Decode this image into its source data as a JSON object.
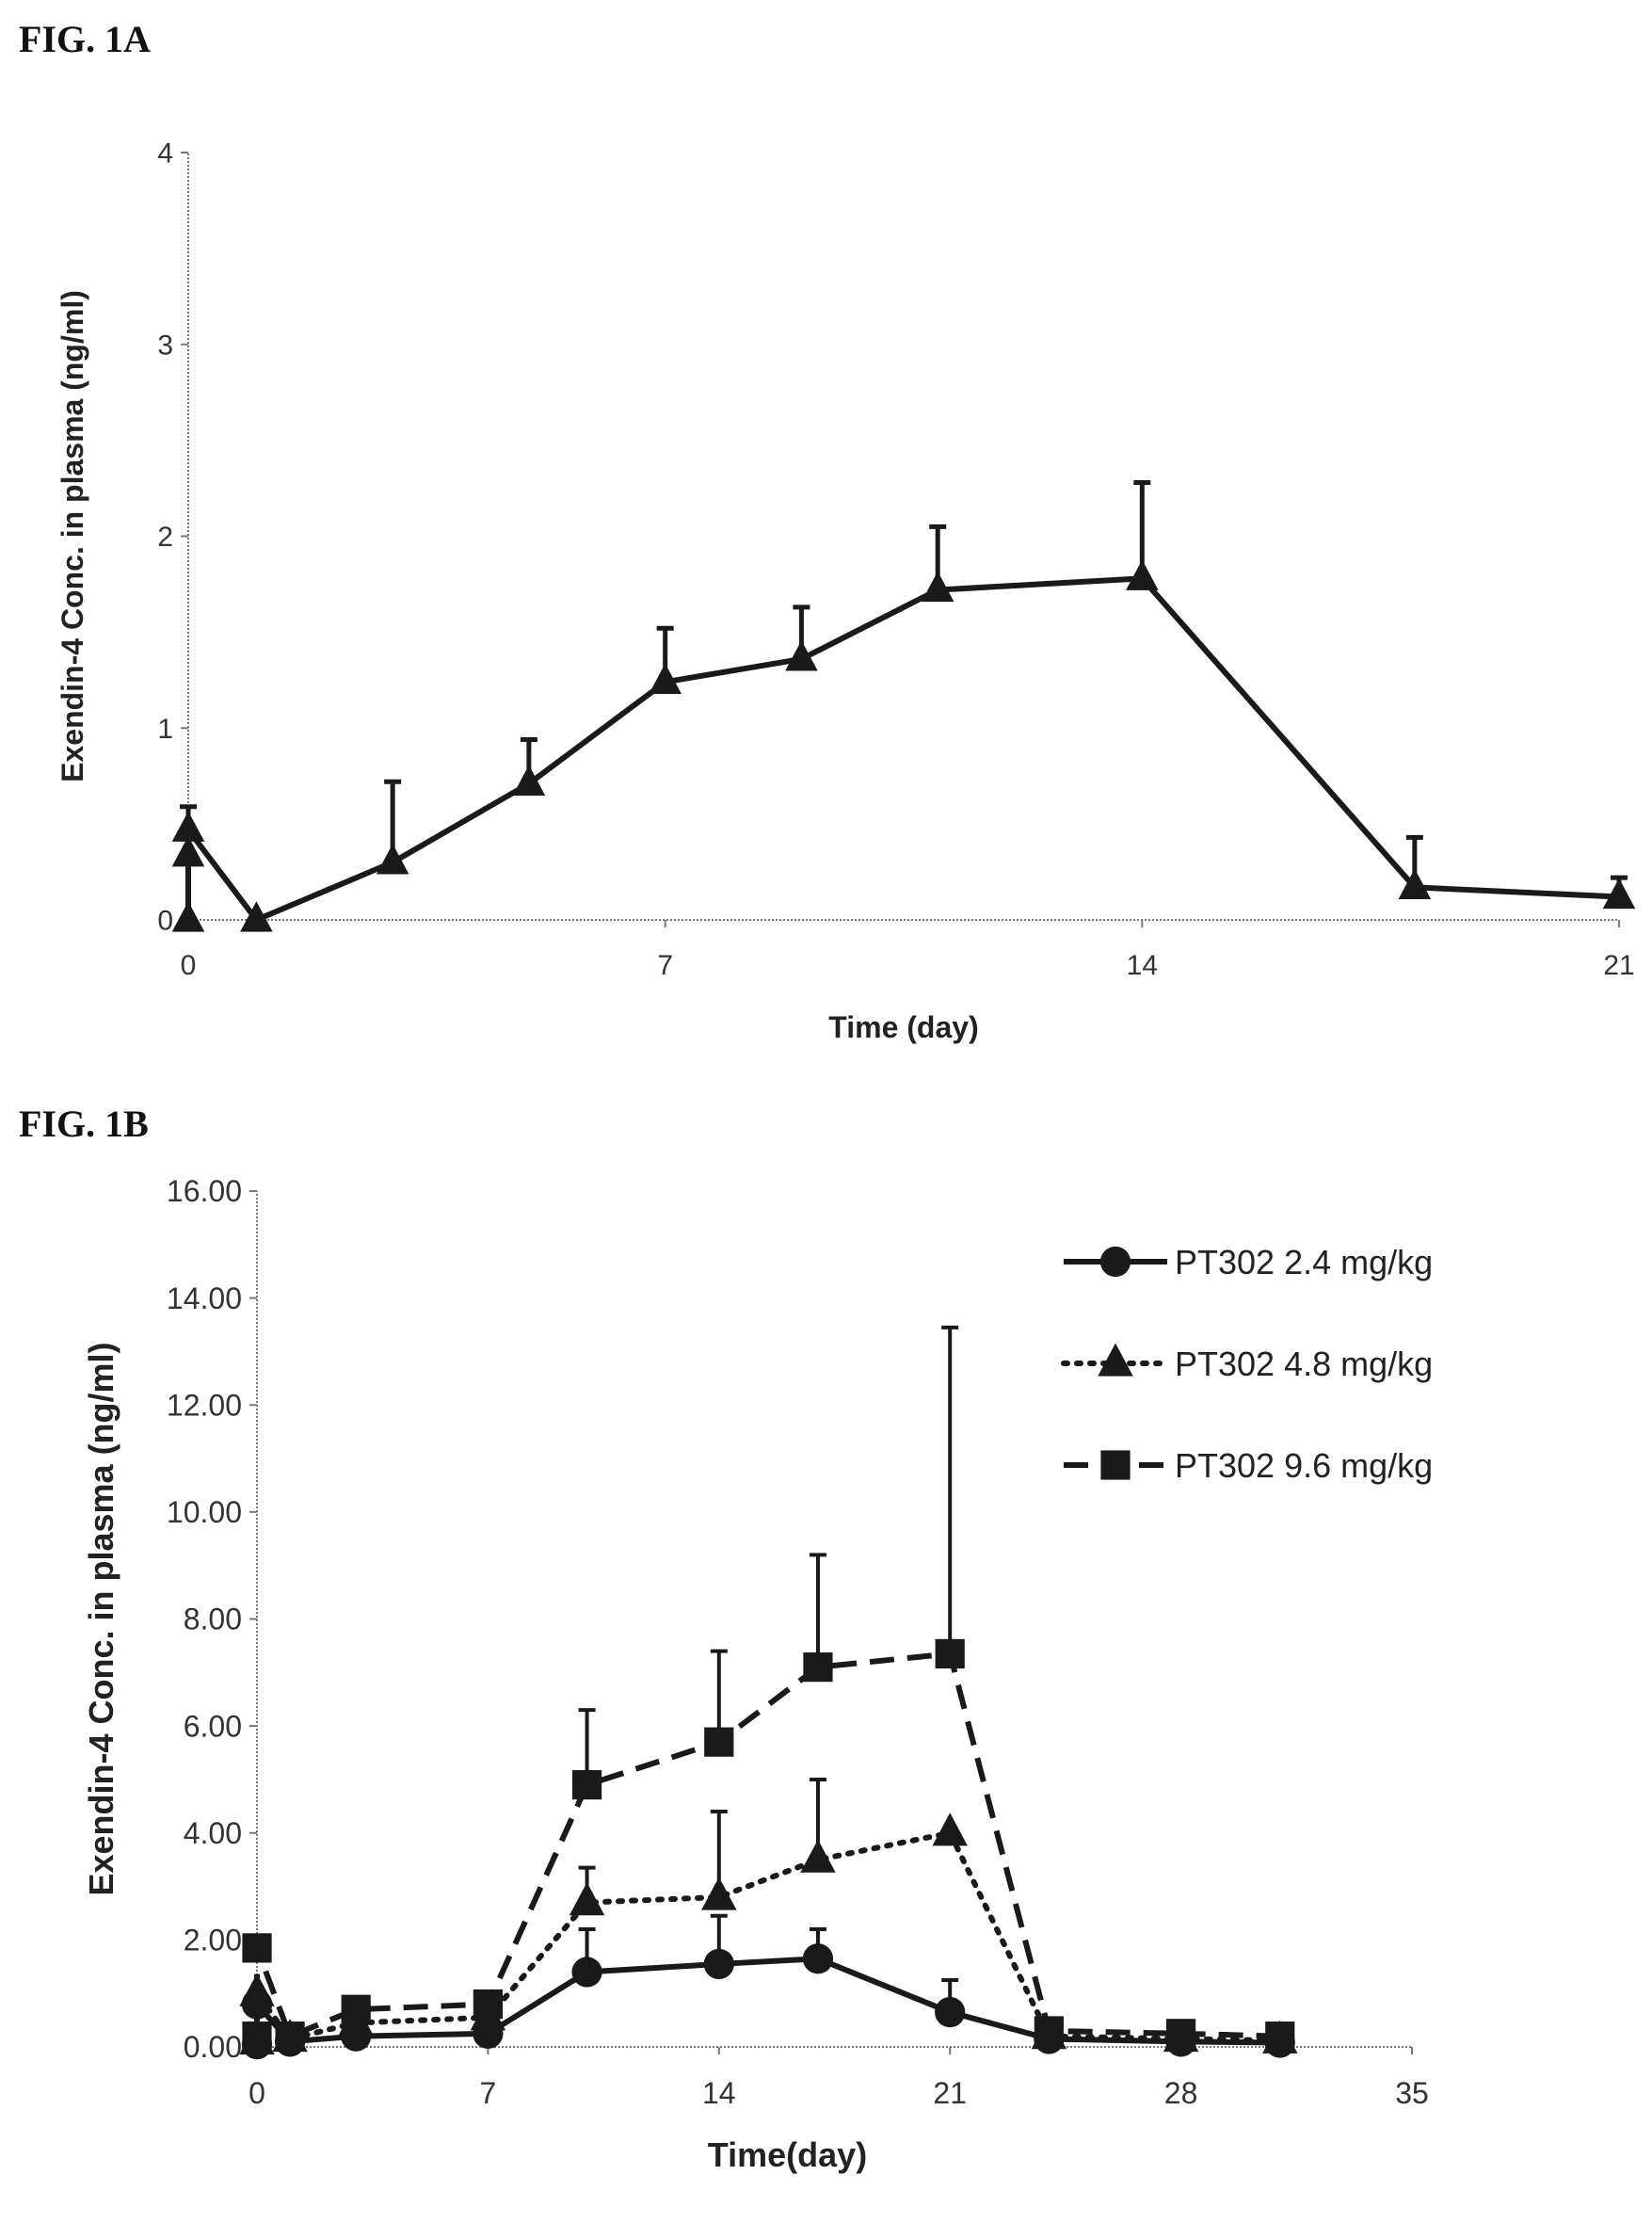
{
  "figures": {
    "a_label": "FIG. 1A",
    "b_label": "FIG. 1B"
  },
  "chart_data": [
    {
      "type": "line",
      "title": "",
      "xlabel": "Time (day)",
      "ylabel": "Exendin-4 Conc. in plasma (ng/ml)",
      "xlim": [
        0,
        21
      ],
      "ylim": [
        0,
        4
      ],
      "xticks": [
        0,
        7,
        14,
        21
      ],
      "yticks": [
        0,
        1,
        2,
        3,
        4
      ],
      "xtick_labels": [
        "0",
        "7",
        "14",
        "21"
      ],
      "ytick_labels": [
        "0",
        "1",
        "2",
        "3",
        "4"
      ],
      "grid": false,
      "series": [
        {
          "marker": "triangle",
          "line": "solid",
          "color": "#1a1a1a",
          "points": [
            {
              "x": 0,
              "y": 0.0
            },
            {
              "x": 0,
              "y": 0.34
            },
            {
              "x": 0,
              "y": 0.47,
              "err": 0.12
            },
            {
              "x": 1,
              "y": 0.0
            },
            {
              "x": 3,
              "y": 0.3,
              "err": 0.42
            },
            {
              "x": 5,
              "y": 0.71,
              "err": 0.23
            },
            {
              "x": 7,
              "y": 1.24,
              "err": 0.28
            },
            {
              "x": 9,
              "y": 1.36,
              "err": 0.27
            },
            {
              "x": 11,
              "y": 1.72,
              "err": 0.33
            },
            {
              "x": 14,
              "y": 1.78,
              "err": 0.5
            },
            {
              "x": 18,
              "y": 0.17,
              "err": 0.26
            },
            {
              "x": 21,
              "y": 0.12,
              "err": 0.1
            }
          ]
        }
      ]
    },
    {
      "type": "line",
      "title": "",
      "xlabel": "Time(day)",
      "ylabel": "Exendin-4 Conc. in plasma (ng/ml)",
      "xlim": [
        0,
        35
      ],
      "ylim": [
        0,
        16
      ],
      "xticks": [
        0,
        7,
        14,
        21,
        28,
        35
      ],
      "yticks": [
        0,
        2,
        4,
        6,
        8,
        10,
        12,
        14,
        16
      ],
      "xtick_labels": [
        "0",
        "7",
        "14",
        "21",
        "28",
        "35"
      ],
      "ytick_labels": [
        "0.00",
        "2.00",
        "4.00",
        "6.00",
        "8.00",
        "10.00",
        "12.00",
        "14.00",
        "16.00"
      ],
      "grid": false,
      "legend": "top-right",
      "series": [
        {
          "name": "PT302 2.4 mg/kg",
          "marker": "circle",
          "line": "solid",
          "color": "#1a1a1a",
          "points": [
            {
              "x": 0,
              "y": 0.05
            },
            {
              "x": 0,
              "y": 0.8
            },
            {
              "x": 1,
              "y": 0.1
            },
            {
              "x": 3,
              "y": 0.2
            },
            {
              "x": 7,
              "y": 0.25
            },
            {
              "x": 10,
              "y": 1.4,
              "err": 0.8
            },
            {
              "x": 14,
              "y": 1.55,
              "err": 0.9
            },
            {
              "x": 17,
              "y": 1.65,
              "err": 0.55
            },
            {
              "x": 21,
              "y": 0.65,
              "err": 0.6
            },
            {
              "x": 24,
              "y": 0.15
            },
            {
              "x": 28,
              "y": 0.1
            },
            {
              "x": 31,
              "y": 0.08
            }
          ]
        },
        {
          "name": "PT302 4.8 mg/kg",
          "marker": "triangle",
          "line": "dotted",
          "color": "#1a1a1a",
          "points": [
            {
              "x": 0,
              "y": 0.1
            },
            {
              "x": 0,
              "y": 1.0
            },
            {
              "x": 1,
              "y": 0.15
            },
            {
              "x": 3,
              "y": 0.45
            },
            {
              "x": 7,
              "y": 0.55
            },
            {
              "x": 10,
              "y": 2.7,
              "err": 0.65
            },
            {
              "x": 14,
              "y": 2.8,
              "err": 1.6
            },
            {
              "x": 17,
              "y": 3.5,
              "err": 1.5
            },
            {
              "x": 21,
              "y": 4.0
            },
            {
              "x": 24,
              "y": 0.2
            },
            {
              "x": 28,
              "y": 0.15
            },
            {
              "x": 31,
              "y": 0.12
            }
          ]
        },
        {
          "name": "PT302 9.6 mg/kg",
          "marker": "square",
          "line": "dashed",
          "color": "#1a1a1a",
          "points": [
            {
              "x": 0,
              "y": 0.2
            },
            {
              "x": 0,
              "y": 1.85
            },
            {
              "x": 1,
              "y": 0.2
            },
            {
              "x": 3,
              "y": 0.7
            },
            {
              "x": 7,
              "y": 0.8
            },
            {
              "x": 10,
              "y": 4.9,
              "err": 1.4
            },
            {
              "x": 14,
              "y": 5.7,
              "err": 1.7
            },
            {
              "x": 17,
              "y": 7.1,
              "err": 2.1
            },
            {
              "x": 21,
              "y": 7.35,
              "err": 6.1
            },
            {
              "x": 24,
              "y": 0.3
            },
            {
              "x": 28,
              "y": 0.25
            },
            {
              "x": 31,
              "y": 0.2
            }
          ]
        }
      ]
    }
  ]
}
